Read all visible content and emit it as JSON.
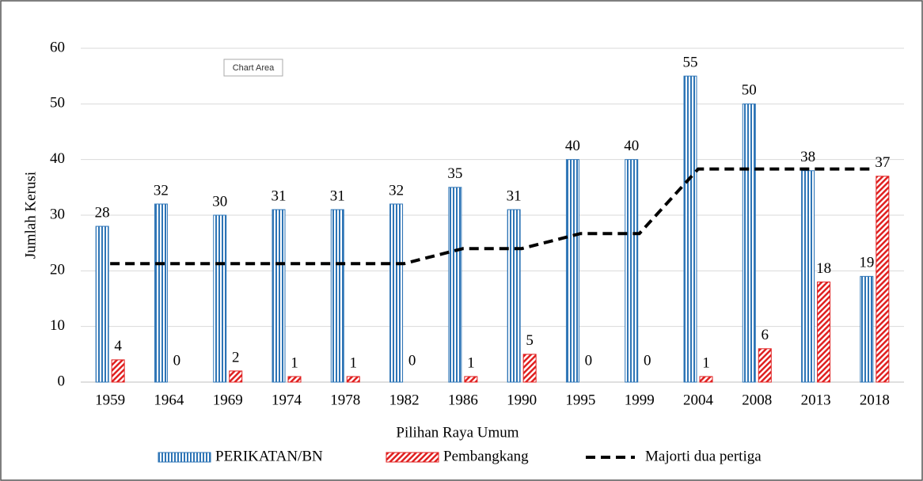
{
  "chart_data": {
    "type": "bar",
    "tooltip": "Chart Area",
    "x_label": "Pilihan Raya Umum",
    "y_label": "Jumlah Kerusi",
    "categories": [
      "1959",
      "1964",
      "1969",
      "1974",
      "1978",
      "1982",
      "1986",
      "1990",
      "1995",
      "1999",
      "2004",
      "2008",
      "2013",
      "2018"
    ],
    "series": [
      {
        "name": "PERIKATAN/BN",
        "type": "bar",
        "color": "#2e75b6",
        "values": [
          28,
          32,
          30,
          31,
          31,
          32,
          35,
          31,
          40,
          40,
          55,
          50,
          38,
          19
        ]
      },
      {
        "name": "Pembangkang",
        "type": "bar",
        "color": "#e02020",
        "values": [
          4,
          0,
          2,
          1,
          1,
          0,
          1,
          5,
          0,
          0,
          1,
          6,
          18,
          37
        ]
      },
      {
        "name": "Majorti dua pertiga",
        "type": "line",
        "dashed": true,
        "color": "#000000",
        "values": [
          21.3,
          21.3,
          21.3,
          21.3,
          21.3,
          21.3,
          24,
          24,
          26.7,
          26.7,
          38.3,
          38.3,
          38.3,
          38.3
        ]
      }
    ],
    "ylim": [
      0,
      60
    ],
    "yticks": [
      0,
      10,
      20,
      30,
      40,
      50,
      60
    ],
    "grid": true,
    "legend": "bottom"
  }
}
